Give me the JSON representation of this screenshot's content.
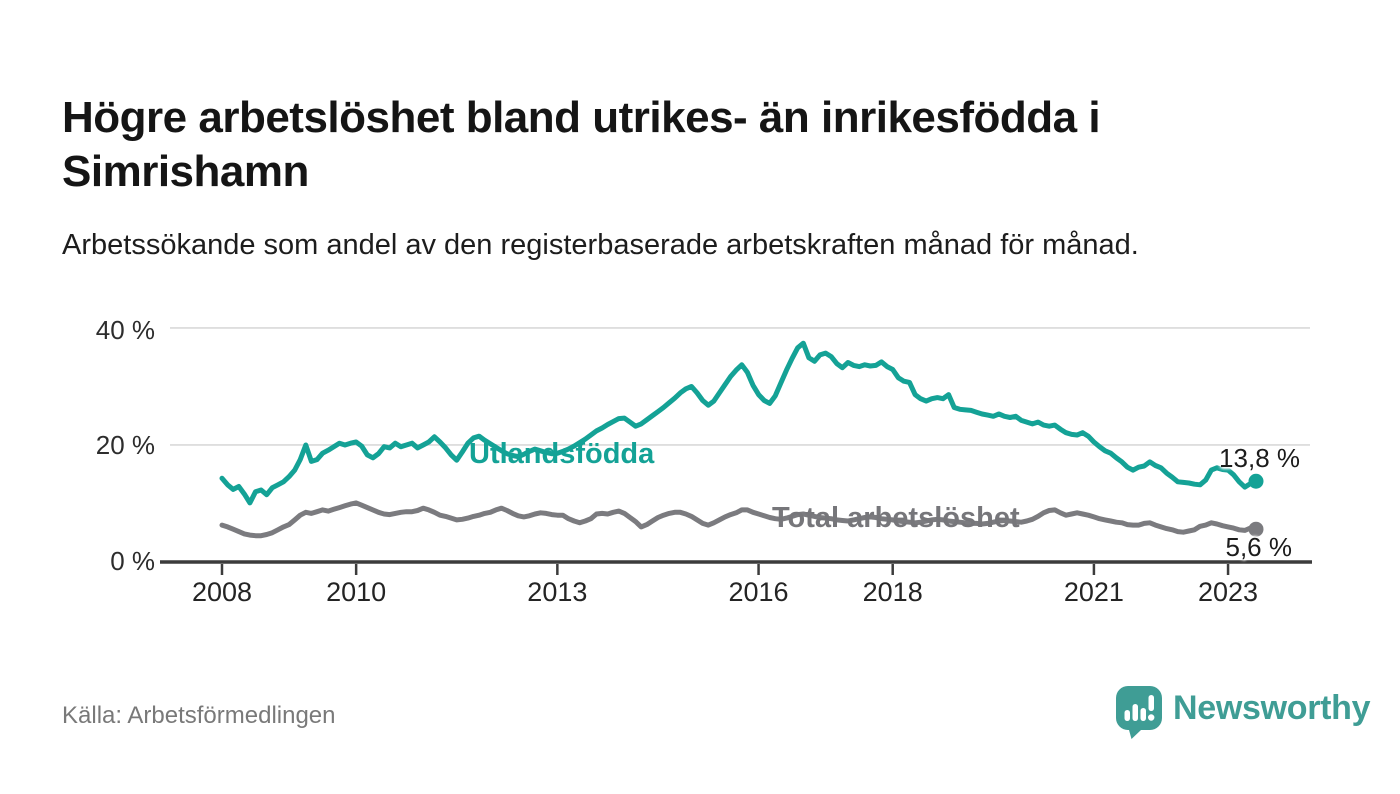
{
  "header": {
    "title": "Högre arbetslöshet bland utrikes- än inrikesfödda i Simrishamn",
    "subtitle": "Arbetssökande som andel av den registerbaserade arbetskraften månad för månad."
  },
  "source": {
    "label": "Källa: Arbetsförmedlingen"
  },
  "branding": {
    "wordmark": "Newsworthy",
    "icon": "speech-bubble-bar-chart-icon",
    "accent_color": "#3f9d95"
  },
  "chart_data": {
    "type": "line",
    "x_unit": "month",
    "x_start": "2008-01",
    "x_end": "2023-06",
    "grid": "horizontal",
    "legend_position": "inline-labels",
    "ylim": [
      0,
      42
    ],
    "y_ticks": [
      {
        "label": "40 %",
        "value": 40
      },
      {
        "label": "20 %",
        "value": 20
      },
      {
        "label": "0 %",
        "value": 0
      }
    ],
    "x_ticks": [
      {
        "label": "2008",
        "month_index": 0
      },
      {
        "label": "2010",
        "month_index": 24
      },
      {
        "label": "2013",
        "month_index": 60
      },
      {
        "label": "2016",
        "month_index": 96
      },
      {
        "label": "2018",
        "month_index": 120
      },
      {
        "label": "2021",
        "month_index": 156
      },
      {
        "label": "2023",
        "month_index": 180
      }
    ],
    "series": [
      {
        "name": "Utlandsfödda",
        "color": "#14a296",
        "end_value": 13.8,
        "end_label": "13,8 %",
        "values": [
          14.3,
          13.2,
          12.4,
          12.9,
          11.6,
          10.1,
          12.0,
          12.3,
          11.5,
          12.7,
          13.2,
          13.7,
          14.6,
          15.7,
          17.5,
          20.0,
          17.2,
          17.5,
          18.6,
          19.1,
          19.7,
          20.3,
          20.0,
          20.3,
          20.5,
          19.8,
          18.3,
          17.8,
          18.5,
          19.7,
          19.5,
          20.3,
          19.7,
          20.0,
          20.3,
          19.5,
          20.0,
          20.5,
          21.4,
          20.5,
          19.5,
          18.3,
          17.4,
          18.8,
          20.3,
          21.2,
          21.5,
          20.8,
          20.2,
          19.6,
          19.0,
          18.5,
          18.2,
          18.0,
          18.4,
          18.9,
          19.3,
          19.0,
          18.7,
          18.5,
          18.6,
          18.9,
          19.3,
          19.8,
          20.4,
          21.0,
          21.7,
          22.4,
          22.9,
          23.5,
          24.0,
          24.5,
          24.6,
          23.9,
          23.2,
          23.6,
          24.3,
          25.0,
          25.7,
          26.4,
          27.2,
          28.0,
          28.9,
          29.6,
          30.0,
          28.9,
          27.6,
          26.8,
          27.5,
          28.9,
          30.3,
          31.7,
          32.8,
          33.7,
          32.4,
          30.2,
          28.6,
          27.6,
          27.1,
          28.4,
          30.6,
          32.8,
          34.8,
          36.6,
          37.4,
          34.9,
          34.3,
          35.4,
          35.7,
          35.1,
          33.9,
          33.2,
          34.1,
          33.6,
          33.4,
          33.7,
          33.5,
          33.6,
          34.2,
          33.4,
          32.9,
          31.5,
          30.9,
          30.7,
          28.6,
          27.9,
          27.5,
          27.9,
          28.1,
          27.9,
          28.6,
          26.4,
          26.1,
          26.0,
          25.9,
          25.6,
          25.3,
          25.1,
          24.9,
          25.3,
          24.9,
          24.7,
          24.9,
          24.2,
          23.9,
          23.6,
          23.9,
          23.4,
          23.2,
          23.4,
          22.7,
          22.1,
          21.8,
          21.7,
          22.1,
          21.5,
          20.5,
          19.7,
          19.0,
          18.6,
          17.8,
          17.1,
          16.2,
          15.7,
          16.2,
          16.4,
          17.1,
          16.5,
          16.1,
          15.2,
          14.5,
          13.7,
          13.6,
          13.5,
          13.3,
          13.2,
          14.0,
          15.7,
          16.1,
          15.8,
          15.7,
          14.9,
          13.7,
          12.8,
          13.4,
          13.8
        ]
      },
      {
        "name": "Total arbetslöshet",
        "color": "#7b7b7f",
        "end_value": 5.6,
        "end_label": "5,6 %",
        "values": [
          6.3,
          6.0,
          5.6,
          5.2,
          4.8,
          4.6,
          4.5,
          4.5,
          4.7,
          5.0,
          5.5,
          6.0,
          6.4,
          7.2,
          8.0,
          8.5,
          8.3,
          8.6,
          8.9,
          8.7,
          9.0,
          9.3,
          9.6,
          9.9,
          10.1,
          9.7,
          9.3,
          8.9,
          8.5,
          8.2,
          8.1,
          8.3,
          8.5,
          8.6,
          8.6,
          8.8,
          9.2,
          8.9,
          8.5,
          8.0,
          7.8,
          7.5,
          7.2,
          7.3,
          7.5,
          7.8,
          8.0,
          8.3,
          8.5,
          8.9,
          9.2,
          8.8,
          8.3,
          7.9,
          7.7,
          7.9,
          8.2,
          8.4,
          8.3,
          8.1,
          8.0,
          8.0,
          7.4,
          7.0,
          6.7,
          7.0,
          7.4,
          8.2,
          8.3,
          8.2,
          8.5,
          8.7,
          8.3,
          7.6,
          6.9,
          6.0,
          6.4,
          7.0,
          7.6,
          8.0,
          8.3,
          8.5,
          8.5,
          8.2,
          7.8,
          7.2,
          6.6,
          6.3,
          6.7,
          7.2,
          7.7,
          8.1,
          8.4,
          8.9,
          8.9,
          8.5,
          8.2,
          7.9,
          7.6,
          7.4,
          7.3,
          7.5,
          7.8,
          8.1,
          8.2,
          8.0,
          7.8,
          7.6,
          7.5,
          7.4,
          7.2,
          7.1,
          7.0,
          7.2,
          7.4,
          7.6,
          7.7,
          7.6,
          7.4,
          7.3,
          7.2,
          7.0,
          6.9,
          6.8,
          6.7,
          6.8,
          7.0,
          7.2,
          7.3,
          7.2,
          7.0,
          6.9,
          6.8,
          6.7,
          6.6,
          6.6,
          6.5,
          6.6,
          6.8,
          7.0,
          7.1,
          7.0,
          6.9,
          6.8,
          7.0,
          7.3,
          7.8,
          8.4,
          8.8,
          8.9,
          8.4,
          8.0,
          8.2,
          8.4,
          8.2,
          8.0,
          7.7,
          7.4,
          7.2,
          7.0,
          6.8,
          6.7,
          6.4,
          6.3,
          6.3,
          6.6,
          6.7,
          6.3,
          6.0,
          5.7,
          5.5,
          5.2,
          5.1,
          5.3,
          5.5,
          6.1,
          6.3,
          6.7,
          6.5,
          6.2,
          6.0,
          5.8,
          5.5,
          5.4,
          5.8,
          5.6
        ]
      }
    ],
    "style": {
      "grid_color": "#d9d9d9",
      "axis_color": "#3c3c3c",
      "tick_label_color": "#242424",
      "line_width": 5
    }
  }
}
